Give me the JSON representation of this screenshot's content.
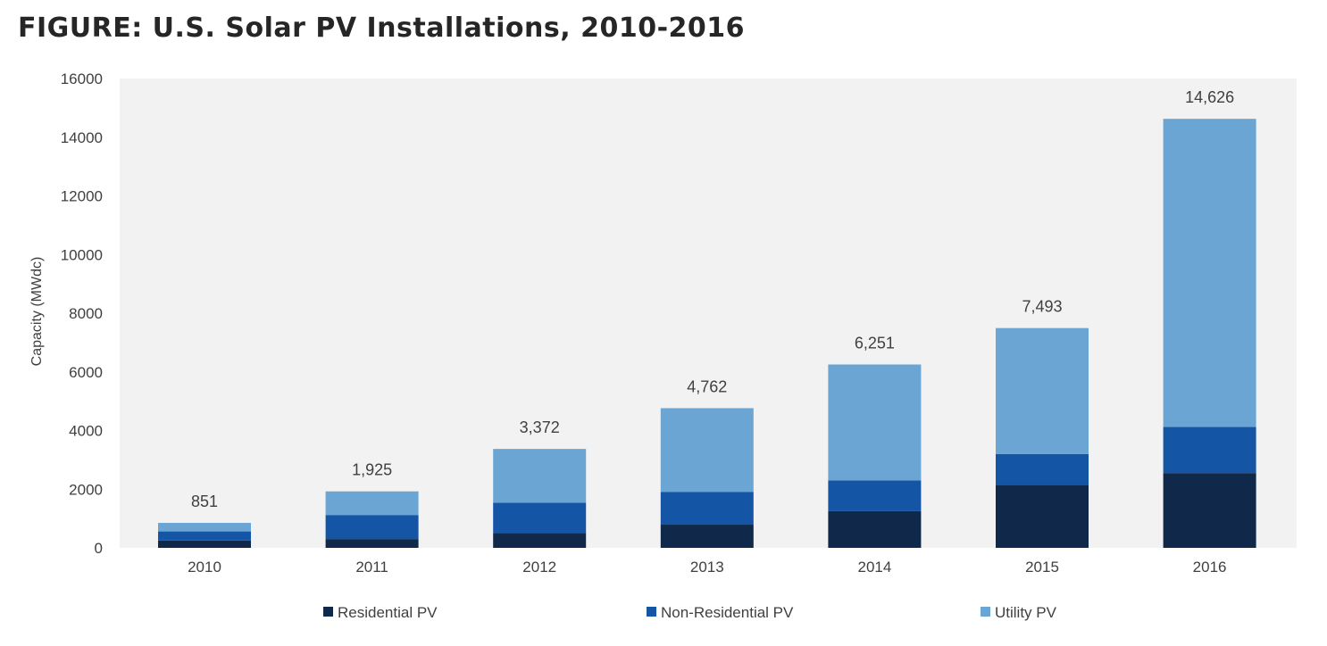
{
  "title": "FIGURE: U.S. Solar PV Installations, 2010-2016",
  "chart_data": {
    "type": "bar",
    "stacked": true,
    "categories": [
      "2010",
      "2011",
      "2012",
      "2013",
      "2014",
      "2015",
      "2016"
    ],
    "series": [
      {
        "name": "Residential PV",
        "color": "#10294a",
        "values": [
          250,
          300,
          500,
          790,
          1250,
          2150,
          2550
        ]
      },
      {
        "name": "Non-Residential PV",
        "color": "#1555a5",
        "values": [
          310,
          820,
          1040,
          1120,
          1050,
          1050,
          1570
        ]
      },
      {
        "name": "Utility PV",
        "color": "#6aa5d4",
        "values": [
          291,
          805,
          1832,
          2852,
          3951,
          4293,
          10506
        ]
      }
    ],
    "totals": [
      851,
      1925,
      3372,
      4762,
      6251,
      7493,
      14626
    ],
    "total_labels": [
      "851",
      "1,925",
      "3,372",
      "4,762",
      "6,251",
      "7,493",
      "14,626"
    ],
    "ylabel": "Capacity (MWdc)",
    "xlabel": "",
    "ylim": [
      0,
      16000
    ],
    "yticks": [
      0,
      2000,
      4000,
      6000,
      8000,
      10000,
      12000,
      14000,
      16000
    ],
    "plot_background": "#f2f2f2",
    "grid": false,
    "legend_position": "bottom"
  }
}
